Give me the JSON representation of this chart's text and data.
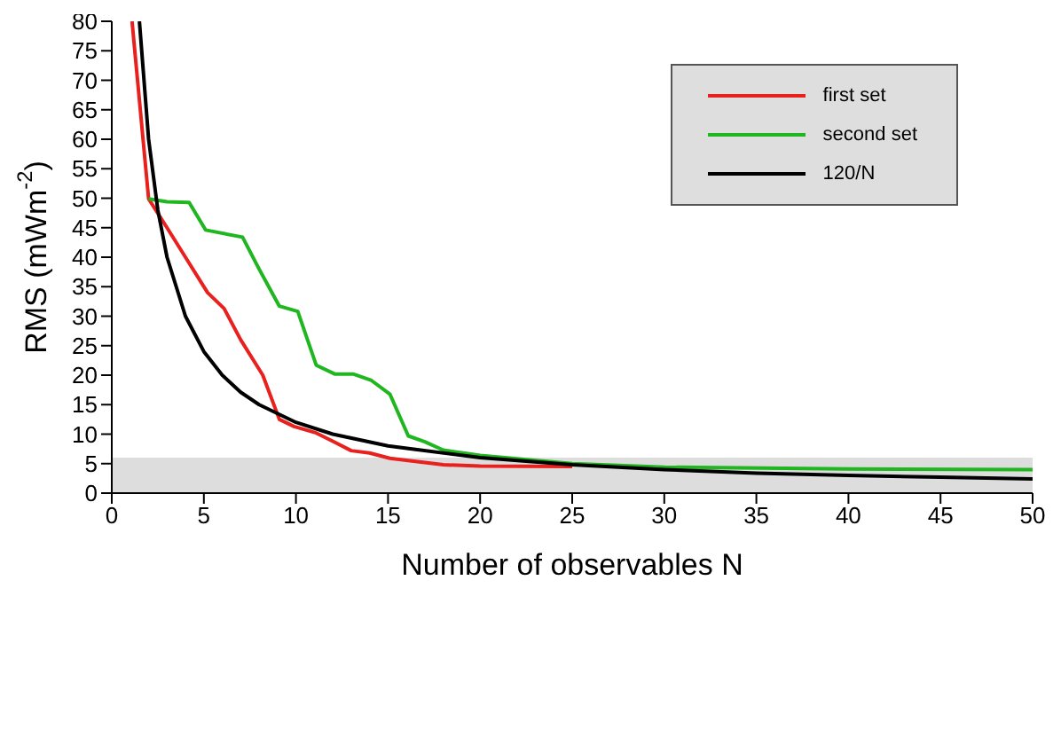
{
  "chart_data": {
    "type": "line",
    "xlabel": "Number of observables N",
    "ylabel": "RMS (mWm$^{-2}$)",
    "xlim": [
      0,
      50
    ],
    "ylim": [
      0,
      80
    ],
    "xticks": [
      0,
      5,
      10,
      15,
      20,
      25,
      30,
      35,
      40,
      45,
      50
    ],
    "yticks": [
      0,
      5,
      10,
      15,
      20,
      25,
      30,
      35,
      40,
      45,
      50,
      55,
      60,
      65,
      70,
      75,
      80
    ],
    "grid": false,
    "legend": "top right",
    "marker": "none",
    "line_style": "solid",
    "bands": [
      {
        "axis": "y",
        "from": 0,
        "to": 6,
        "color": "#dddddd"
      }
    ],
    "series": [
      {
        "name": "first set",
        "color": "#e8201e",
        "x": [
          1.1,
          2,
          3,
          4,
          5.2,
          6.1,
          7,
          8.2,
          9.1,
          9.9,
          11.1,
          12,
          13,
          14,
          15.1,
          15.9,
          18,
          20,
          25
        ],
        "values": [
          80,
          49.9,
          45,
          40,
          34,
          31.3,
          26,
          20,
          12.5,
          11.3,
          10.2,
          8.8,
          7.2,
          6.8,
          5.9,
          5.6,
          4.8,
          4.6,
          4.5
        ]
      },
      {
        "name": "second set",
        "color": "#1fb61f",
        "x": [
          2,
          3,
          4.2,
          5.1,
          7.1,
          8,
          9.1,
          10.1,
          11.1,
          12.1,
          13.1,
          14.1,
          15.1,
          16.1,
          17,
          18,
          20,
          25,
          30,
          40,
          50
        ],
        "values": [
          49.9,
          49.4,
          49.3,
          44.6,
          43.4,
          38,
          31.7,
          30.8,
          21.7,
          20.2,
          20.2,
          19.1,
          16.8,
          9.7,
          8.7,
          7.3,
          6.4,
          5,
          4.4,
          4.1,
          4
        ]
      },
      {
        "name": "120/N",
        "color": "#000000",
        "x": [
          1.5,
          2,
          2.5,
          3,
          4,
          5,
          6,
          7,
          8,
          10,
          12,
          15,
          20,
          25,
          30,
          35,
          40,
          45,
          50
        ],
        "values": [
          80,
          60,
          48,
          40,
          30,
          24,
          20,
          17.1,
          15,
          12,
          10,
          8,
          6,
          4.8,
          4,
          3.4,
          3,
          2.7,
          2.4
        ]
      }
    ]
  }
}
